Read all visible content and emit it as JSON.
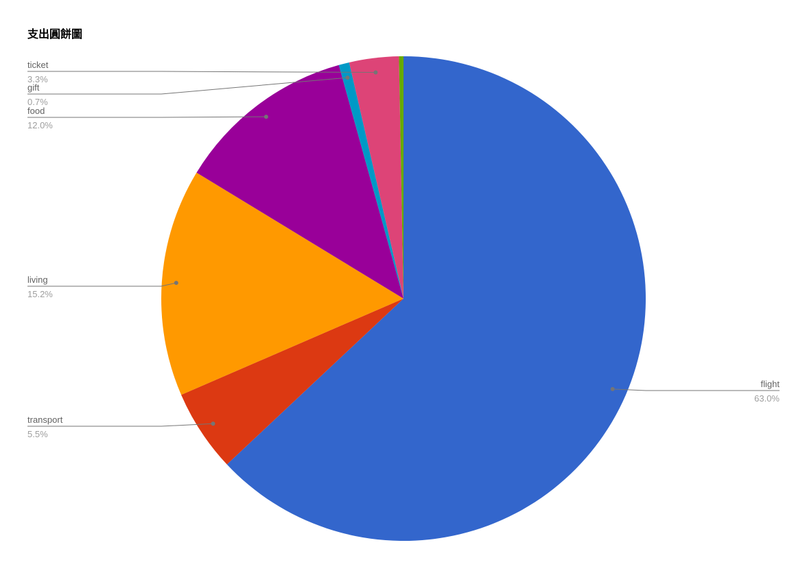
{
  "page": {
    "background": "#ffffff"
  },
  "chart_data": {
    "type": "pie",
    "title": "支出圓餅圖",
    "legend_position": "none",
    "labeling": "outside-callout-labels",
    "value_format": "percent",
    "title_color": "#000000",
    "callout_line_color": "#757575",
    "label_text_color": "#636363",
    "percent_text_color": "#9e9e9e",
    "slices": [
      {
        "label": "flight",
        "value": 63.0,
        "pct_label": "63.0%",
        "color": "#3366cc"
      },
      {
        "label": "transport",
        "value": 5.5,
        "pct_label": "5.5%",
        "color": "#dc3912"
      },
      {
        "label": "living",
        "value": 15.2,
        "pct_label": "15.2%",
        "color": "#ff9900"
      },
      {
        "label": "food",
        "value": 12.0,
        "pct_label": "12.0%",
        "color": "#990099"
      },
      {
        "label": "gift",
        "value": 0.7,
        "pct_label": "0.7%",
        "color": "#0099c6"
      },
      {
        "label": "ticket",
        "value": 3.3,
        "pct_label": "3.3%",
        "color": "#dd4477"
      },
      {
        "label": "",
        "value": 0.3,
        "pct_label": "",
        "color": "#66aa00"
      }
    ]
  }
}
